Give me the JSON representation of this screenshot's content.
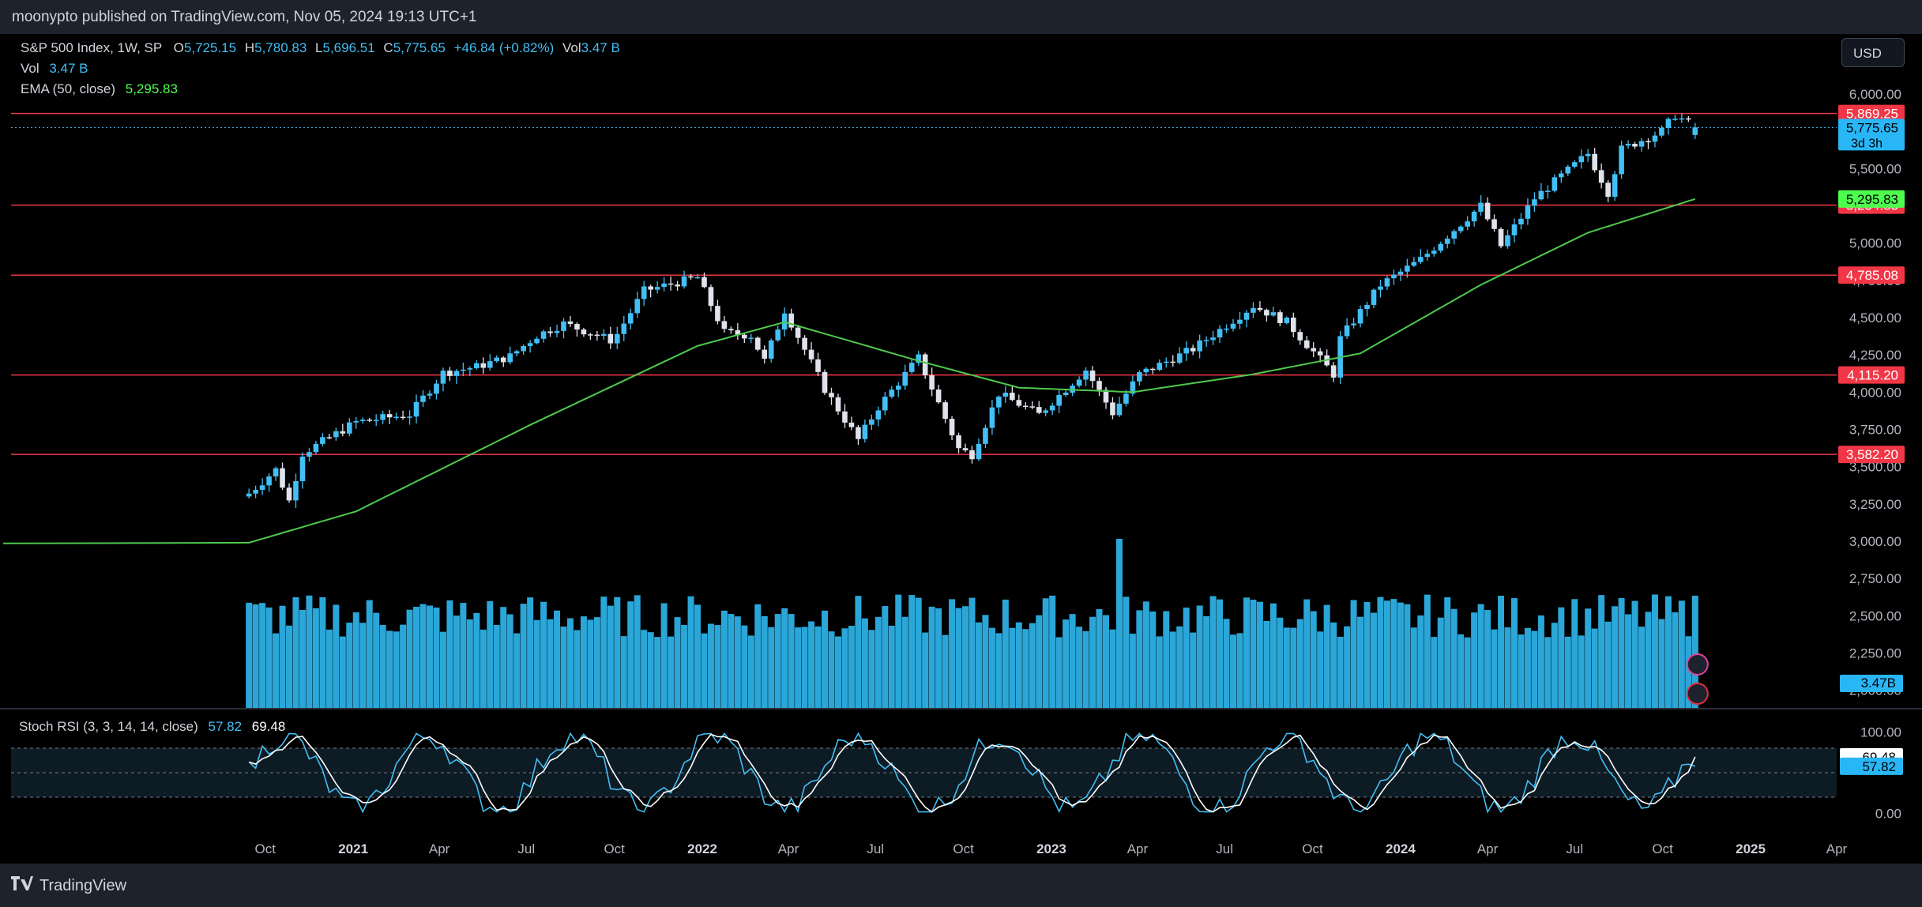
{
  "header": {
    "publish_line": "moonypto published on TradingView.com, Nov 05, 2024 19:13 UTC+1"
  },
  "legend": {
    "symbol": "S&P 500 Index, 1W, SP",
    "o_label": "O",
    "o_value": "5,725.15",
    "h_label": "H",
    "h_value": "5,780.83",
    "l_label": "L",
    "l_value": "5,696.51",
    "c_label": "C",
    "c_value": "5,775.65",
    "change": "+46.84 (+0.82%)",
    "vol_label": "Vol",
    "vol_value": "3.47 B",
    "vol_row_label": "Vol",
    "vol_row_value": "3.47 B",
    "ema_label": "EMA (50, close)",
    "ema_value": "5,295.83",
    "stoch_label": "Stoch RSI (3, 3, 14, 14, close)",
    "stoch_k": "57.82",
    "stoch_d": "69.48"
  },
  "currency_button": "USD",
  "footer": {
    "logo_text": "TradingView"
  },
  "colors": {
    "up": "#42bff5",
    "down": "#e0e3eb",
    "ema": "#4dc94d",
    "hline": "#f23645",
    "volume": "#2aa7d8",
    "stoch_k": "#42bff5",
    "stoch_d": "#ffffff",
    "background": "#000000",
    "frame": "#1e222d"
  },
  "chart_data": [
    {
      "type": "candlestick",
      "title": "S&P 500 Index, 1W, SP",
      "y_axis_ticks": [
        "6,000.00",
        "5,750.00",
        "5,500.00",
        "5,250.00",
        "5,000.00",
        "4,750.00",
        "4,500.00",
        "4,250.00",
        "4,000.00",
        "3,750.00",
        "3,500.00",
        "3,250.00",
        "3,000.00",
        "2,750.00",
        "2,500.00",
        "2,250.00",
        "2,000.00"
      ],
      "ylim": [
        1950,
        6090
      ],
      "x_axis_ticks": [
        "Oct",
        "2021",
        "Apr",
        "Jul",
        "Oct",
        "2022",
        "Apr",
        "Jul",
        "Oct",
        "2023",
        "Apr",
        "Jul",
        "Oct",
        "2024",
        "Apr",
        "Jul",
        "Oct",
        "2025",
        "Apr"
      ],
      "horizontal_levels": [
        5869.25,
        5254.83,
        4785.08,
        4115.2,
        3582.2
      ],
      "level_labels": [
        "5,869.25",
        "5,254.83",
        "4,785.08",
        "4,115.20",
        "3,582.20"
      ],
      "last_price": "5,775.65",
      "countdown": "3d 3h",
      "ema_label_value": "5,295.83",
      "volume_label": "3.47B",
      "anchor_closes": [
        [
          "2020-09-14",
          3320
        ],
        [
          "2020-10-12",
          3480
        ],
        [
          "2020-10-26",
          3270
        ],
        [
          "2020-11-09",
          3590
        ],
        [
          "2021-01-04",
          3800
        ],
        [
          "2021-03-01",
          3850
        ],
        [
          "2021-04-05",
          4130
        ],
        [
          "2021-05-10",
          4170
        ],
        [
          "2021-06-14",
          4240
        ],
        [
          "2021-07-12",
          4380
        ],
        [
          "2021-08-09",
          4460
        ],
        [
          "2021-09-27",
          4350
        ],
        [
          "2021-10-04",
          4390
        ],
        [
          "2021-11-01",
          4680
        ],
        [
          "2021-12-27",
          4770
        ],
        [
          "2022-01-24",
          4400
        ],
        [
          "2022-02-21",
          4380
        ],
        [
          "2022-03-07",
          4210
        ],
        [
          "2022-03-28",
          4550
        ],
        [
          "2022-05-09",
          4020
        ],
        [
          "2022-06-13",
          3680
        ],
        [
          "2022-07-04",
          3900
        ],
        [
          "2022-08-15",
          4230
        ],
        [
          "2022-09-26",
          3620
        ],
        [
          "2022-10-10",
          3580
        ],
        [
          "2022-11-07",
          3990
        ],
        [
          "2022-12-19",
          3850
        ],
        [
          "2023-02-06",
          4150
        ],
        [
          "2023-03-06",
          3860
        ],
        [
          "2023-04-03",
          4120
        ],
        [
          "2023-05-29",
          4290
        ],
        [
          "2023-07-31",
          4580
        ],
        [
          "2023-09-04",
          4470
        ],
        [
          "2023-10-23",
          4120
        ],
        [
          "2023-10-30",
          4360
        ],
        [
          "2023-12-11",
          4720
        ],
        [
          "2024-01-22",
          4890
        ],
        [
          "2024-03-25",
          5250
        ],
        [
          "2024-04-15",
          4980
        ],
        [
          "2024-05-20",
          5300
        ],
        [
          "2024-07-15",
          5600
        ],
        [
          "2024-08-05",
          5340
        ],
        [
          "2024-08-19",
          5630
        ],
        [
          "2024-09-30",
          5750
        ],
        [
          "2024-10-14",
          5860
        ],
        [
          "2024-11-04",
          5775.65
        ]
      ],
      "ema50_anchors": [
        [
          "2020-09-14",
          2990
        ],
        [
          "2021-01-04",
          3200
        ],
        [
          "2021-07-05",
          3780
        ],
        [
          "2021-12-27",
          4310
        ],
        [
          "2022-03-28",
          4470
        ],
        [
          "2022-08-15",
          4210
        ],
        [
          "2022-11-28",
          4030
        ],
        [
          "2023-03-27",
          4000
        ],
        [
          "2023-07-31",
          4120
        ],
        [
          "2023-11-20",
          4260
        ],
        [
          "2024-03-25",
          4720
        ],
        [
          "2024-07-15",
          5070
        ],
        [
          "2024-11-04",
          5295.83
        ]
      ]
    },
    {
      "type": "bar",
      "title": "Vol",
      "last_value": "3.47 B"
    },
    {
      "type": "line",
      "title": "Stoch RSI (3, 3, 14, 14, close)",
      "y_axis_ticks": [
        "100.00",
        "0.00"
      ],
      "bands": [
        80,
        20
      ],
      "series": [
        {
          "name": "K",
          "last": 57.82
        },
        {
          "name": "D",
          "last": 69.48
        }
      ],
      "k_labels": [
        "57.82"
      ],
      "d_labels": [
        "69.48"
      ]
    }
  ]
}
